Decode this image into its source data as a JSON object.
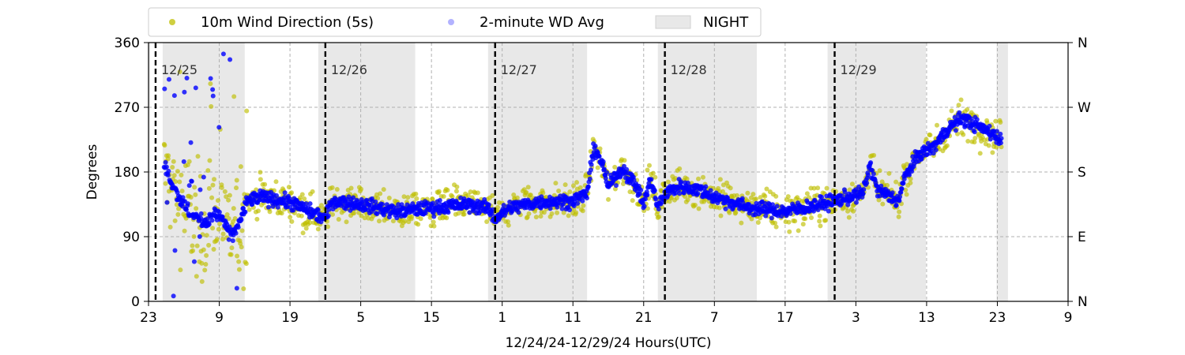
{
  "chart_data": {
    "type": "scatter",
    "xlabel": "12/24/24-12/29/24  Hours(UTC)",
    "ylabel": "Degrees",
    "x_range_hours": [
      0,
      130
    ],
    "ylim": [
      0,
      360
    ],
    "x_ticks": [
      {
        "hour": 0,
        "label": "23"
      },
      {
        "hour": 10,
        "label": "9"
      },
      {
        "hour": 20,
        "label": "19"
      },
      {
        "hour": 30,
        "label": "5"
      },
      {
        "hour": 40,
        "label": "15"
      },
      {
        "hour": 50,
        "label": "1"
      },
      {
        "hour": 60,
        "label": "11"
      },
      {
        "hour": 70,
        "label": "21"
      },
      {
        "hour": 80,
        "label": "7"
      },
      {
        "hour": 90,
        "label": "17"
      },
      {
        "hour": 100,
        "label": "3"
      },
      {
        "hour": 110,
        "label": "13"
      },
      {
        "hour": 120,
        "label": "23"
      },
      {
        "hour": 130,
        "label": "9"
      }
    ],
    "y_ticks": [
      0,
      90,
      180,
      270,
      360
    ],
    "y_ticks_right": [
      {
        "value": 0,
        "label": "N"
      },
      {
        "value": 90,
        "label": "E"
      },
      {
        "value": 180,
        "label": "S"
      },
      {
        "value": 270,
        "label": "W"
      },
      {
        "value": 360,
        "label": "N"
      }
    ],
    "grid": "dashed, both axes",
    "legend_position": "top, outside plot area",
    "night_shading": [
      [
        0.0,
        0.2
      ],
      [
        2.0,
        13.6
      ],
      [
        24.0,
        37.7
      ],
      [
        48.0,
        62.0
      ],
      [
        72.0,
        86.0
      ],
      [
        96.0,
        109.9
      ],
      [
        119.9,
        121.5
      ]
    ],
    "midnight_markers": [
      {
        "hour": 1.0,
        "label": "12/25"
      },
      {
        "hour": 25.0,
        "label": "12/26"
      },
      {
        "hour": 49.0,
        "label": "12/27"
      },
      {
        "hour": 73.0,
        "label": "12/28"
      },
      {
        "hour": 97.0,
        "label": "12/29"
      }
    ],
    "series": [
      {
        "name": "10m Wind Direction (5s)",
        "color": "#bfbf00",
        "marker": "circle",
        "profile": [
          [
            2.2,
            180
          ],
          [
            4,
            150
          ],
          [
            6,
            120
          ],
          [
            8,
            110
          ],
          [
            10,
            120
          ],
          [
            12,
            90
          ],
          [
            14,
            140
          ],
          [
            16,
            145
          ],
          [
            20,
            138
          ],
          [
            25,
            115
          ],
          [
            26,
            140
          ],
          [
            30,
            135
          ],
          [
            35,
            125
          ],
          [
            40,
            130
          ],
          [
            45,
            135
          ],
          [
            48,
            130
          ],
          [
            49,
            115
          ],
          [
            51,
            130
          ],
          [
            55,
            138
          ],
          [
            60,
            140
          ],
          [
            62,
            150
          ],
          [
            63,
            215
          ],
          [
            64,
            195
          ],
          [
            65,
            160
          ],
          [
            67,
            185
          ],
          [
            69,
            160
          ],
          [
            70,
            135
          ],
          [
            71,
            170
          ],
          [
            72,
            130
          ],
          [
            73,
            150
          ],
          [
            75,
            160
          ],
          [
            78,
            155
          ],
          [
            80,
            145
          ],
          [
            85,
            130
          ],
          [
            90,
            125
          ],
          [
            95,
            135
          ],
          [
            99,
            145
          ],
          [
            101,
            150
          ],
          [
            102,
            190
          ],
          [
            103,
            155
          ],
          [
            105,
            145
          ],
          [
            106,
            140
          ],
          [
            107,
            175
          ],
          [
            109,
            205
          ],
          [
            111,
            215
          ],
          [
            113,
            240
          ],
          [
            115,
            255
          ],
          [
            117,
            245
          ],
          [
            119,
            235
          ],
          [
            120.6,
            225
          ]
        ]
      },
      {
        "name": "2-minute WD Avg",
        "color": "#0000ff",
        "marker": "circle",
        "profile": [
          [
            2.2,
            190
          ],
          [
            4,
            150
          ],
          [
            6,
            120
          ],
          [
            8,
            110
          ],
          [
            10,
            120
          ],
          [
            12,
            90
          ],
          [
            14,
            140
          ],
          [
            16,
            145
          ],
          [
            20,
            138
          ],
          [
            25,
            115
          ],
          [
            26,
            140
          ],
          [
            30,
            135
          ],
          [
            35,
            125
          ],
          [
            40,
            130
          ],
          [
            45,
            135
          ],
          [
            48,
            130
          ],
          [
            49,
            115
          ],
          [
            51,
            130
          ],
          [
            55,
            138
          ],
          [
            60,
            140
          ],
          [
            62,
            150
          ],
          [
            63,
            215
          ],
          [
            64,
            195
          ],
          [
            65,
            160
          ],
          [
            67,
            185
          ],
          [
            69,
            160
          ],
          [
            70,
            135
          ],
          [
            71,
            170
          ],
          [
            72,
            130
          ],
          [
            73,
            150
          ],
          [
            75,
            160
          ],
          [
            78,
            155
          ],
          [
            80,
            145
          ],
          [
            85,
            130
          ],
          [
            90,
            125
          ],
          [
            95,
            135
          ],
          [
            99,
            145
          ],
          [
            101,
            150
          ],
          [
            102,
            190
          ],
          [
            103,
            155
          ],
          [
            105,
            145
          ],
          [
            106,
            140
          ],
          [
            107,
            175
          ],
          [
            109,
            205
          ],
          [
            111,
            215
          ],
          [
            113,
            240
          ],
          [
            115,
            255
          ],
          [
            117,
            245
          ],
          [
            119,
            235
          ],
          [
            120.6,
            225
          ]
        ]
      }
    ]
  },
  "legend": {
    "items": [
      {
        "label": "10m Wind Direction (5s)",
        "color": "#bfbf00",
        "kind": "dot"
      },
      {
        "label": "2-minute WD Avg",
        "color": "#0000ff",
        "kind": "dot"
      },
      {
        "label": "NIGHT",
        "color": "#e8e8e8",
        "kind": "patch"
      }
    ]
  }
}
